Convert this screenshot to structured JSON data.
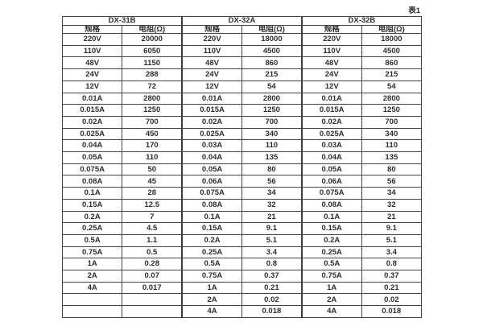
{
  "page_label": "表1",
  "table": {
    "groups": [
      {
        "name": "DX-31B",
        "spec_header": "规格",
        "res_header": "电阻(Ω)"
      },
      {
        "name": "DX-32A",
        "spec_header": "规格",
        "res_header": "电阻(Ω)"
      },
      {
        "name": "DX-32B",
        "spec_header": "规格",
        "res_header": "电阻(Ω)"
      }
    ],
    "rows": [
      [
        "220V",
        "20000",
        "220V",
        "18000",
        "220V",
        "18000"
      ],
      [
        "110V",
        "6050",
        "110V",
        "4500",
        "110V",
        "4500"
      ],
      [
        "48V",
        "1150",
        "48V",
        "860",
        "48V",
        "860"
      ],
      [
        "24V",
        "288",
        "24V",
        "215",
        "24V",
        "215"
      ],
      [
        "12V",
        "72",
        "12V",
        "54",
        "12V",
        "54"
      ],
      [
        "0.01A",
        "2800",
        "0.01A",
        "2800",
        "0.01A",
        "2800"
      ],
      [
        "0.015A",
        "1250",
        "0.015A",
        "1250",
        "0.015A",
        "1250"
      ],
      [
        "0.02A",
        "700",
        "0.02A",
        "700",
        "0.02A",
        "700"
      ],
      [
        "0.025A",
        "450",
        "0.025A",
        "340",
        "0.025A",
        "340"
      ],
      [
        "0.04A",
        "170",
        "0.03A",
        "110",
        "0.03A",
        "110"
      ],
      [
        "0.05A",
        "110",
        "0.04A",
        "135",
        "0.04A",
        "135"
      ],
      [
        "0.075A",
        "50",
        "0.05A",
        "80",
        "0.05A",
        "80"
      ],
      [
        "0.08A",
        "45",
        "0.06A",
        "56",
        "0.06A",
        "56"
      ],
      [
        "0.1A",
        "28",
        "0.075A",
        "34",
        "0.075A",
        "34"
      ],
      [
        "0.15A",
        "12.5",
        "0.08A",
        "32",
        "0.08A",
        "32"
      ],
      [
        "0.2A",
        "7",
        "0.1A",
        "21",
        "0.1A",
        "21"
      ],
      [
        "0.25A",
        "4.5",
        "0.15A",
        "9.1",
        "0.15A",
        "9.1"
      ],
      [
        "0.5A",
        "1.1",
        "0.2A",
        "5.1",
        "0.2A",
        "5.1"
      ],
      [
        "0.75A",
        "0.5",
        "0.25A",
        "3.4",
        "0.25A",
        "3.4"
      ],
      [
        "1A",
        "0.28",
        "0.5A",
        "0.8",
        "0.5A",
        "0.8"
      ],
      [
        "2A",
        "0.07",
        "0.75A",
        "0.37",
        "0.75A",
        "0.37"
      ],
      [
        "4A",
        "0.017",
        "1A",
        "0.21",
        "1A",
        "0.21"
      ],
      [
        "",
        "",
        "2A",
        "0.02",
        "2A",
        "0.02"
      ],
      [
        "",
        "",
        "4A",
        "0.018",
        "4A",
        "0.018"
      ]
    ],
    "colors": {
      "text": "#2e2e2e",
      "border": "#454545",
      "background": "#ffffff"
    }
  }
}
